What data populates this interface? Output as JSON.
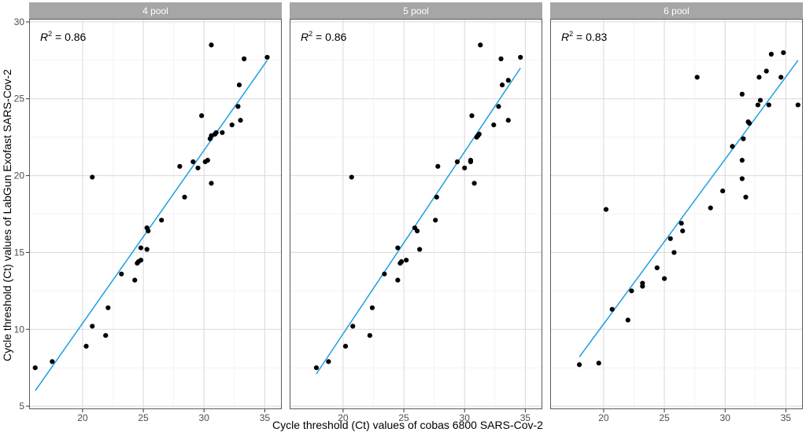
{
  "chart_data": {
    "type": "scatter",
    "xlabel": "Cycle threshold (Ct) values of cobas 6800 SARS-Cov-2",
    "ylabel": "Cycle threshold (Ct) values of LabGun Exofast SARS-Cov-2",
    "xlim": [
      15.6,
      36.4
    ],
    "ylim": [
      4.8,
      30.2
    ],
    "x_ticks": [
      20,
      25,
      30,
      35
    ],
    "y_ticks": [
      5,
      10,
      15,
      20,
      25,
      30
    ],
    "x_tick_labels": [
      "20",
      "25",
      "30",
      "35"
    ],
    "y_tick_labels": [
      "5",
      "10",
      "15",
      "20",
      "25",
      "30"
    ],
    "grid": true,
    "colors": {
      "points": "#000000",
      "fit_line": "#1f9ee0",
      "strip_bg": "#a6a6a6",
      "strip_text": "#ffffff",
      "grid_major": "#d9d9d9",
      "grid_minor": "#ececec",
      "panel_border": "#333333"
    },
    "panels": [
      {
        "title": "4 pool",
        "r2_label": "R",
        "r2_sup": "2",
        "r2_value": " = 0.86",
        "fit": {
          "x": [
            16.1,
            35.2
          ],
          "y": [
            6.0,
            27.5
          ]
        },
        "points": [
          [
            16.1,
            7.5
          ],
          [
            17.5,
            7.9
          ],
          [
            20.3,
            8.9
          ],
          [
            20.8,
            10.2
          ],
          [
            21.9,
            9.6
          ],
          [
            22.1,
            11.4
          ],
          [
            23.2,
            13.6
          ],
          [
            24.3,
            13.2
          ],
          [
            24.5,
            14.3
          ],
          [
            24.6,
            14.4
          ],
          [
            24.8,
            14.5
          ],
          [
            24.8,
            15.3
          ],
          [
            25.3,
            15.2
          ],
          [
            25.3,
            16.6
          ],
          [
            25.4,
            16.4
          ],
          [
            26.5,
            17.1
          ],
          [
            28.0,
            20.6
          ],
          [
            28.4,
            18.6
          ],
          [
            29.1,
            20.9
          ],
          [
            29.5,
            20.5
          ],
          [
            29.8,
            23.9
          ],
          [
            30.1,
            20.9
          ],
          [
            30.3,
            21.0
          ],
          [
            30.6,
            19.5
          ],
          [
            30.5,
            22.4
          ],
          [
            30.6,
            22.6
          ],
          [
            30.9,
            22.7
          ],
          [
            31.0,
            22.8
          ],
          [
            31.5,
            22.8
          ],
          [
            32.3,
            23.3
          ],
          [
            32.8,
            24.5
          ],
          [
            32.9,
            25.9
          ],
          [
            33.0,
            23.6
          ],
          [
            33.3,
            27.6
          ],
          [
            35.2,
            27.7
          ],
          [
            30.6,
            28.5
          ],
          [
            20.8,
            19.9
          ]
        ]
      },
      {
        "title": "5 pool",
        "r2_label": "R",
        "r2_sup": "2",
        "r2_value": " = 0.86",
        "fit": {
          "x": [
            17.8,
            34.6
          ],
          "y": [
            7.1,
            27.0
          ]
        },
        "points": [
          [
            17.8,
            7.5
          ],
          [
            18.8,
            7.9
          ],
          [
            20.2,
            8.9
          ],
          [
            20.8,
            10.2
          ],
          [
            22.2,
            9.6
          ],
          [
            22.4,
            11.4
          ],
          [
            23.4,
            13.6
          ],
          [
            24.5,
            13.2
          ],
          [
            24.5,
            15.3
          ],
          [
            24.7,
            14.3
          ],
          [
            24.8,
            14.4
          ],
          [
            25.2,
            14.5
          ],
          [
            25.9,
            16.6
          ],
          [
            26.1,
            16.4
          ],
          [
            26.3,
            15.2
          ],
          [
            27.6,
            17.1
          ],
          [
            27.7,
            18.6
          ],
          [
            27.8,
            20.6
          ],
          [
            29.4,
            20.9
          ],
          [
            30.0,
            20.5
          ],
          [
            30.5,
            21.0
          ],
          [
            30.5,
            20.9
          ],
          [
            30.6,
            23.9
          ],
          [
            30.8,
            19.5
          ],
          [
            31.0,
            22.5
          ],
          [
            31.1,
            22.6
          ],
          [
            31.2,
            22.7
          ],
          [
            32.4,
            23.3
          ],
          [
            32.8,
            24.5
          ],
          [
            33.1,
            25.9
          ],
          [
            33.0,
            27.6
          ],
          [
            33.6,
            23.6
          ],
          [
            33.6,
            26.2
          ],
          [
            34.6,
            27.7
          ],
          [
            31.3,
            28.5
          ],
          [
            20.7,
            19.9
          ]
        ]
      },
      {
        "title": "6 pool",
        "r2_label": "R",
        "r2_sup": "2",
        "r2_value": " = 0.83",
        "fit": {
          "x": [
            18.0,
            36.0
          ],
          "y": [
            8.2,
            27.5
          ]
        },
        "points": [
          [
            18.0,
            7.7
          ],
          [
            19.6,
            7.8
          ],
          [
            20.2,
            17.8
          ],
          [
            20.7,
            11.3
          ],
          [
            22.0,
            10.6
          ],
          [
            22.3,
            12.5
          ],
          [
            23.2,
            13.0
          ],
          [
            23.2,
            12.8
          ],
          [
            24.4,
            14.0
          ],
          [
            25.0,
            13.3
          ],
          [
            25.5,
            15.9
          ],
          [
            25.8,
            15.0
          ],
          [
            26.4,
            16.9
          ],
          [
            26.5,
            16.4
          ],
          [
            27.7,
            26.4
          ],
          [
            28.8,
            17.9
          ],
          [
            29.8,
            19.0
          ],
          [
            30.6,
            21.9
          ],
          [
            31.4,
            21.0
          ],
          [
            31.4,
            19.8
          ],
          [
            31.4,
            25.3
          ],
          [
            31.5,
            22.4
          ],
          [
            31.7,
            18.6
          ],
          [
            31.9,
            23.5
          ],
          [
            32.0,
            23.4
          ],
          [
            32.7,
            24.6
          ],
          [
            32.8,
            26.4
          ],
          [
            32.9,
            24.9
          ],
          [
            33.4,
            26.8
          ],
          [
            33.6,
            24.6
          ],
          [
            33.8,
            27.9
          ],
          [
            34.6,
            26.4
          ],
          [
            34.8,
            28.0
          ],
          [
            36.0,
            24.6
          ]
        ]
      }
    ]
  }
}
